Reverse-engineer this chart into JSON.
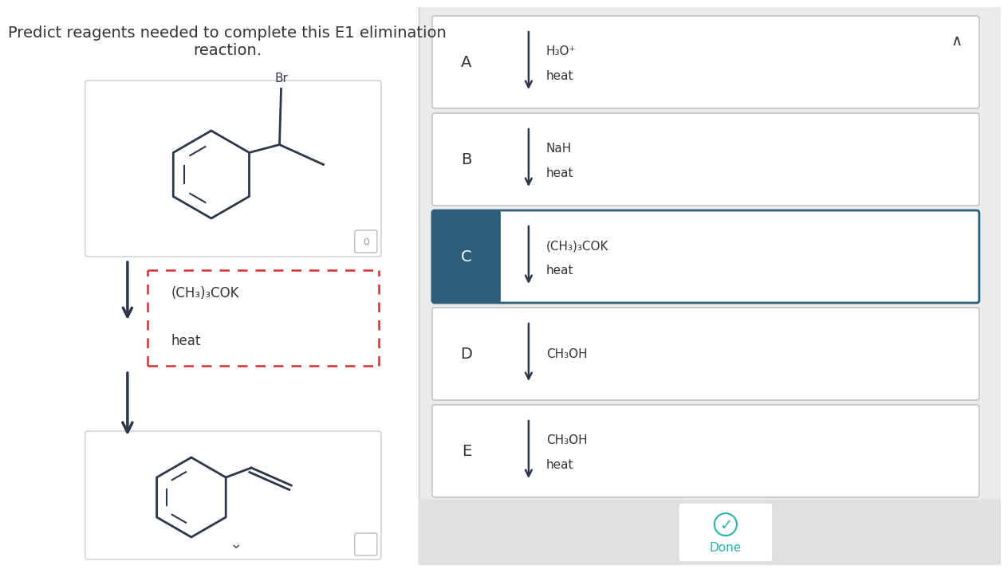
{
  "title_line1": "Predict reagents needed to complete this E1 elimination",
  "title_line2": "reaction.",
  "title_fontsize": 13.5,
  "bg_left": "#ffffff",
  "bg_right": "#f0f0f0",
  "white": "#ffffff",
  "dark_blue": "#2d5f7a",
  "dark_text": "#333333",
  "light_text": "#555555",
  "arrow_color": "#333333",
  "box_border": "#bbbbbb",
  "dashed_border": "#cc3333",
  "options": [
    {
      "label": "A",
      "line1": "H₃O⁺",
      "line2": "heat",
      "selected": false
    },
    {
      "label": "B",
      "line1": "NaH",
      "line2": "heat",
      "selected": false
    },
    {
      "label": "C",
      "line1": "(CH₃)₃COK",
      "line2": "heat",
      "selected": true
    },
    {
      "label": "D",
      "line1": "CH₃OH",
      "line2": "",
      "selected": false
    },
    {
      "label": "E",
      "line1": "CH₃OH",
      "line2": "heat",
      "selected": false
    }
  ],
  "reagent_line1": "(CH₃)₃COK",
  "reagent_line2": "heat",
  "done_text": "Done",
  "teal": "#2ab5a5"
}
